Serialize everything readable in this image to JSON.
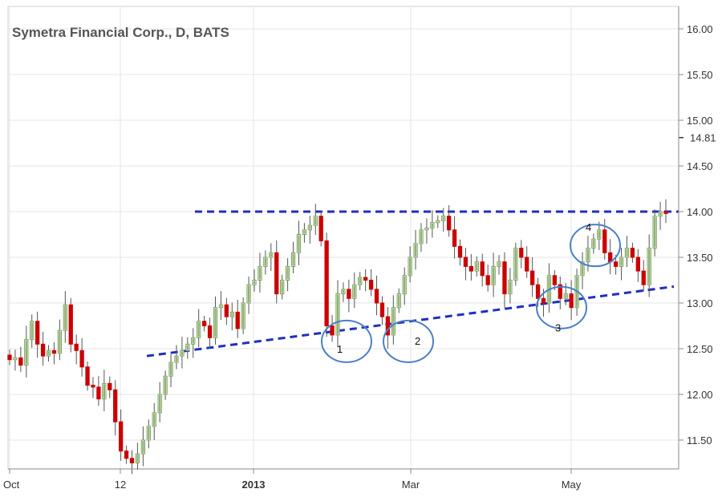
{
  "chart_data": {
    "type": "candlestick",
    "title": "Symetra Financial Corp., D, BATS",
    "ylim": [
      11.25,
      16.2
    ],
    "y_ticks": [
      "11.50",
      "12.00",
      "12.50",
      "13.00",
      "13.50",
      "14.00",
      "14.50",
      "15.00",
      "15.50",
      "16.00"
    ],
    "price_marker": {
      "value": 14.81,
      "label": "14.81"
    },
    "x_ticks": [
      {
        "label": "Oct",
        "bold": false
      },
      {
        "label": "12",
        "bold": false
      },
      {
        "label": "2013",
        "bold": true
      },
      {
        "label": "Mar",
        "bold": false
      },
      {
        "label": "May",
        "bold": false
      }
    ],
    "grid": true,
    "colors": {
      "up": "#7aa35a",
      "down": "#cc0000",
      "trendline": "#1f2fbf",
      "circle": "#4a7fc8",
      "grid": "#e4e4e4",
      "axis": "#888888"
    },
    "closes": [
      12.38,
      12.4,
      12.32,
      12.6,
      12.8,
      12.55,
      12.42,
      12.48,
      12.45,
      12.7,
      12.98,
      12.55,
      12.48,
      12.3,
      12.1,
      12.08,
      11.95,
      12.12,
      12.05,
      11.7,
      11.38,
      11.3,
      11.25,
      11.35,
      11.5,
      11.65,
      11.8,
      12.0,
      12.2,
      12.35,
      12.42,
      12.48,
      12.55,
      12.62,
      12.8,
      12.75,
      12.62,
      12.95,
      12.98,
      12.85,
      12.9,
      12.72,
      13.0,
      13.2,
      13.25,
      13.4,
      13.5,
      13.55,
      13.1,
      13.25,
      13.4,
      13.55,
      13.75,
      13.8,
      13.85,
      13.95,
      13.68,
      12.75,
      12.65,
      13.1,
      13.15,
      13.05,
      13.2,
      13.28,
      13.25,
      13.15,
      13.0,
      12.85,
      12.65,
      12.95,
      13.1,
      13.3,
      13.5,
      13.65,
      13.8,
      13.82,
      13.88,
      13.9,
      13.95,
      13.8,
      13.62,
      13.5,
      13.4,
      13.35,
      13.45,
      13.3,
      13.2,
      13.4,
      13.45,
      13.1,
      13.25,
      13.6,
      13.5,
      13.35,
      13.2,
      13.05,
      13.0,
      13.3,
      13.2,
      13.05,
      13.1,
      12.95,
      13.3,
      13.45,
      13.6,
      13.7,
      13.8,
      13.55,
      13.45,
      13.4,
      13.5,
      13.6,
      13.5,
      13.35,
      13.2,
      13.6,
      13.95,
      14.0,
      13.98
    ],
    "annotations": {
      "resistance": {
        "y": 14.0,
        "label": ""
      },
      "support": {
        "y_start": 12.42,
        "y_end": 13.18,
        "label": ""
      },
      "circles": [
        {
          "label": "1",
          "price": 12.58
        },
        {
          "label": "2",
          "price": 12.58
        },
        {
          "label": "3",
          "price": 12.95
        },
        {
          "label": "4",
          "price": 13.63
        }
      ]
    }
  }
}
